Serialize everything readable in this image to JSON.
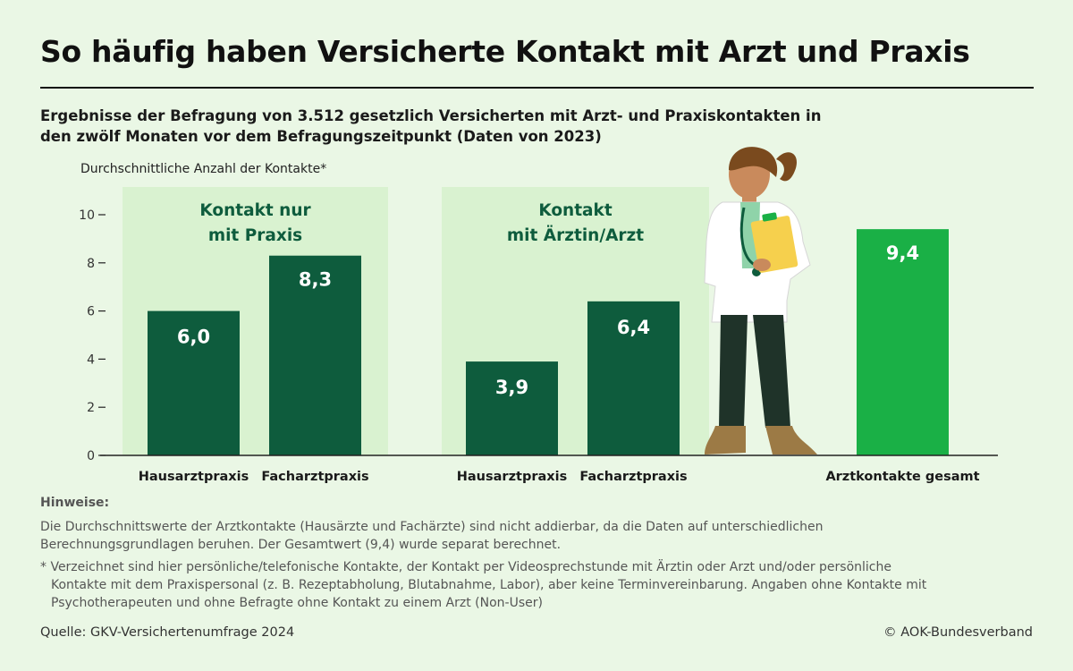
{
  "header": {
    "title": "So häufig haben Versicherte Kontakt mit Arzt und Praxis",
    "subtitle": "Ergebnisse der Befragung von 3.512 gesetzlich Versicherten mit Arzt- und Praxiskontakten in den zwölf Monaten vor dem Befragungszeitpunkt (Daten von 2023)"
  },
  "chart_data": {
    "type": "bar",
    "ylabel": "Durchschnittliche Anzahl der Kontakte*",
    "ylim": [
      0,
      10
    ],
    "yticks": [
      "0",
      "2",
      "4",
      "6",
      "8",
      "10"
    ],
    "grid": false,
    "groups": [
      {
        "label": "Kontakt nur mit Praxis",
        "label_lines": [
          "Kontakt nur",
          "mit Praxis"
        ],
        "highlighted": true,
        "bars": [
          {
            "category": "Hausarztpraxis",
            "value": 6.0,
            "value_label": "6,0"
          },
          {
            "category": "Facharztpraxis",
            "value": 8.3,
            "value_label": "8,3"
          }
        ]
      },
      {
        "label": "Kontakt mit Ärztin/Arzt",
        "label_lines": [
          "Kontakt",
          "mit Ärztin/Arzt"
        ],
        "highlighted": true,
        "bars": [
          {
            "category": "Hausarztpraxis",
            "value": 3.9,
            "value_label": "3,9"
          },
          {
            "category": "Facharztpraxis",
            "value": 6.4,
            "value_label": "6,4"
          }
        ]
      },
      {
        "label": "",
        "label_lines": [],
        "highlighted": false,
        "bars": [
          {
            "category": "Arztkontakte gesamt",
            "value": 9.4,
            "value_label": "9,4",
            "accent": true
          }
        ]
      }
    ]
  },
  "colors": {
    "background": "#eaf7e5",
    "group_panel": "#d9f2d0",
    "bar_dark": "#0e5c3d",
    "bar_accent": "#1ab046",
    "axis": "#222222"
  },
  "illustration": {
    "icon": "doctor-with-clipboard-illustration"
  },
  "notes": {
    "heading": "Hinweise:",
    "note1": "Die Durchschnittswerte der Arztkontakte (Hausärzte und Fachärzte) sind nicht addierbar, da die Daten auf unterschiedlichen Berechnungsgrundlagen beruhen. Der Gesamtwert (9,4) wurde separat berechnet.",
    "note2": "* Verzeichnet sind hier persönliche/telefonische Kontakte, der Kontakt per Videosprechstunde mit Ärztin oder Arzt und/oder persönliche Kontakte mit dem Praxispersonal (z. B. Rezeptabholung, Blutabnahme, Labor), aber keine Terminvereinbarung. Angaben ohne Kontakte mit Psychotherapeuten und ohne Befragte ohne Kontakt zu einem Arzt (Non-User)"
  },
  "footer": {
    "source": "Quelle: GKV-Versichertenumfrage 2024",
    "copyright": "© AOK-Bundesverband"
  }
}
